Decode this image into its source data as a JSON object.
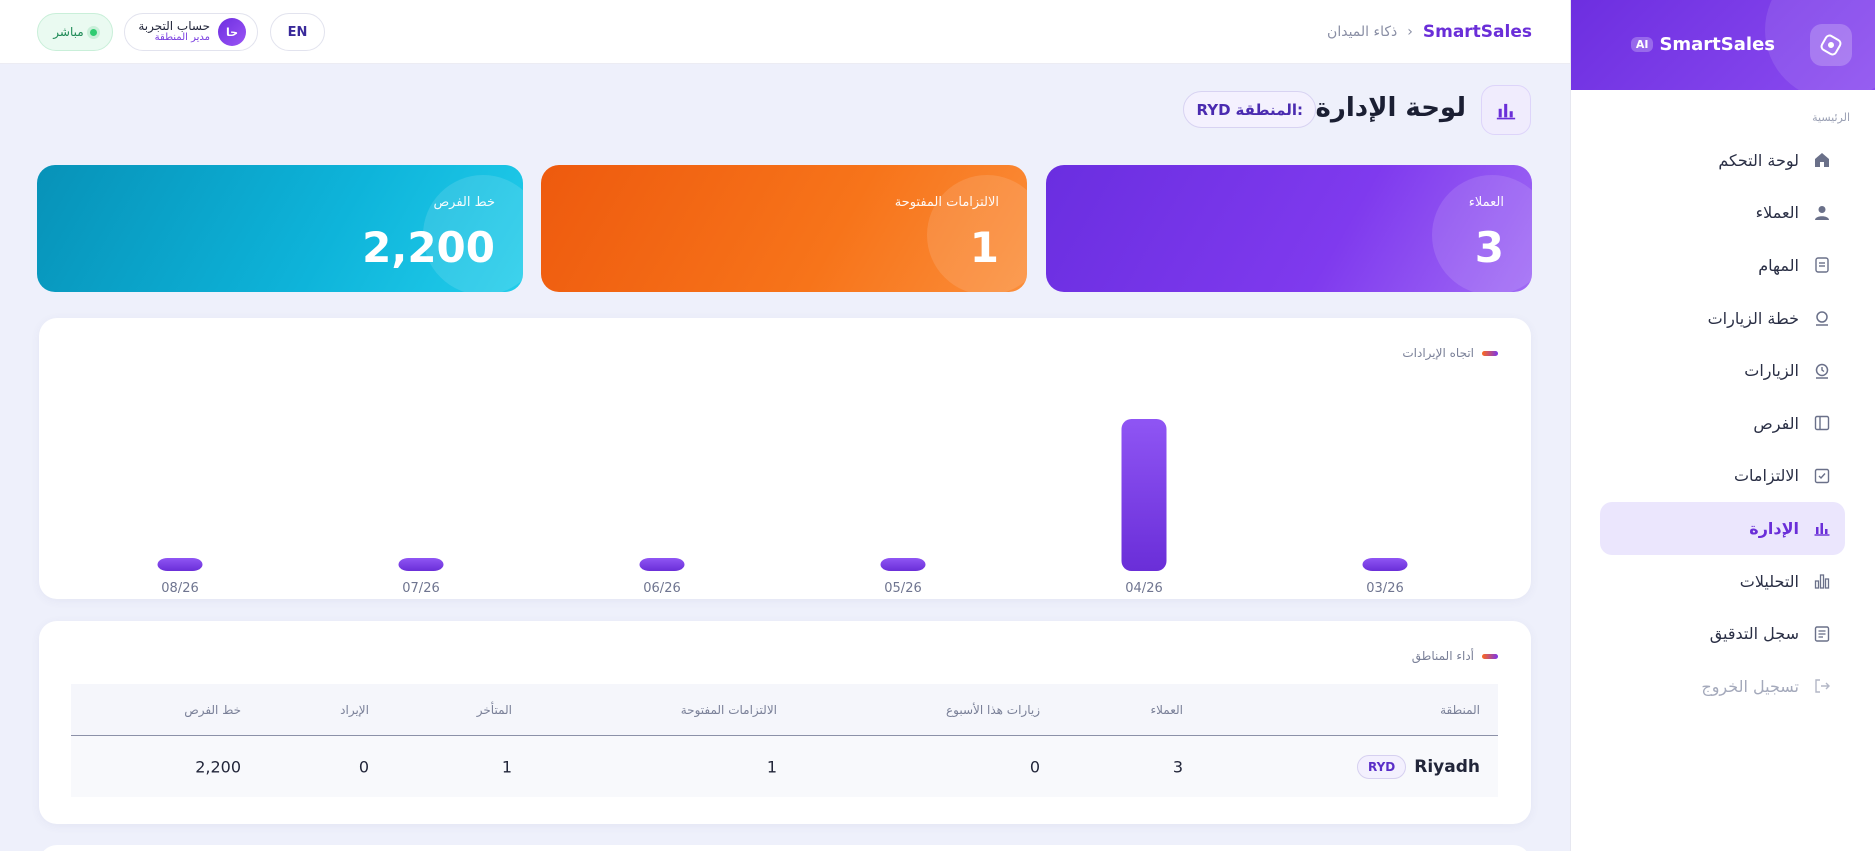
{
  "brand": {
    "name": "SmartSales",
    "badge": "AI"
  },
  "sidebar": {
    "section_label": "الرئيسية",
    "items": [
      {
        "label": "لوحة التحكم",
        "icon": "home-icon"
      },
      {
        "label": "العملاء",
        "icon": "user-icon"
      },
      {
        "label": "المهام",
        "icon": "tasks-icon"
      },
      {
        "label": "خطة الزيارات",
        "icon": "visit-plan-icon"
      },
      {
        "label": "الزيارات",
        "icon": "visits-icon"
      },
      {
        "label": "الفرص",
        "icon": "opportunities-icon"
      },
      {
        "label": "الالتزامات",
        "icon": "commitments-icon"
      },
      {
        "label": "الإدارة",
        "icon": "admin-chart-icon",
        "active": true
      },
      {
        "label": "التحليلات",
        "icon": "analytics-icon"
      },
      {
        "label": "سجل التدقيق",
        "icon": "audit-log-icon"
      },
      {
        "label": "تسجيل الخروج",
        "icon": "logout-icon"
      }
    ]
  },
  "topbar": {
    "breadcrumb_brand": "SmartSales",
    "breadcrumb_sep": "›",
    "breadcrumb_page": "ذكاء الميدان",
    "lang_toggle": "EN",
    "user_name": "حساب التجربة",
    "user_role": "مدير المنطقة",
    "user_initials": "حا",
    "status": "مباشر"
  },
  "page": {
    "title": "لوحة الإدارة",
    "region_label": "المنطقة:",
    "region_code": "RYD"
  },
  "kpis": {
    "clients": {
      "label": "العملاء",
      "value": "3"
    },
    "commitments": {
      "label": "الالتزامات المفتوحة",
      "value": "1"
    },
    "pipeline": {
      "label": "خط الفرص",
      "value": "2,200"
    }
  },
  "chart_title": "اتجاه الإيرادات",
  "chart_data": {
    "type": "bar",
    "title": "اتجاه الإيرادات",
    "categories": [
      "03/26",
      "04/26",
      "05/26",
      "06/26",
      "07/26",
      "08/26"
    ],
    "values": [
      0,
      1,
      0,
      0,
      0,
      0
    ],
    "xlabel": "",
    "ylabel": "",
    "ylim": [
      0,
      1
    ],
    "grid": false,
    "bar_color": "#7b3aec"
  },
  "table": {
    "title": "أداء المناطق",
    "columns": [
      "المنطقة",
      "العملاء",
      "زيارات هذا الأسبوع",
      "الالتزامات المفتوحة",
      "المتأخر",
      "الإيراد",
      "خط الفرص"
    ],
    "rows": [
      {
        "region": "Riyadh",
        "code": "RYD",
        "clients": "3",
        "visits_week": "0",
        "open_commitments": "1",
        "overdue": "1",
        "revenue": "0",
        "pipeline": "2,200"
      }
    ]
  },
  "colors": {
    "accent": "#6a2ed8",
    "orange": "#f7741a",
    "cyan": "#0eb4da",
    "live": "#2ecc71"
  }
}
